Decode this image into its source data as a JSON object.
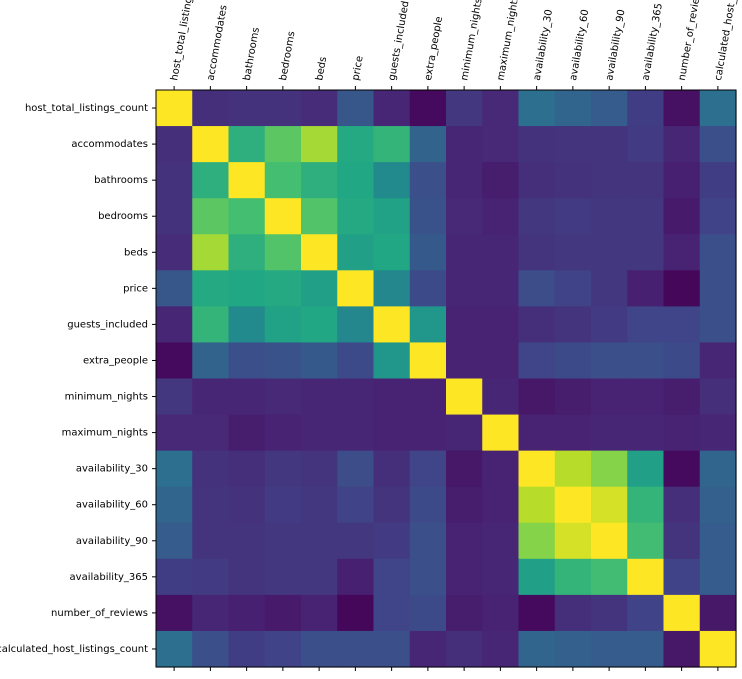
{
  "chart_data": {
    "type": "heatmap",
    "title": "",
    "xlabel": "",
    "ylabel": "",
    "colormap": "viridis",
    "value_range": [
      -0.1,
      1.0
    ],
    "labels": [
      "host_total_listings_count",
      "accommodates",
      "bathrooms",
      "bedrooms",
      "beds",
      "price",
      "guests_included",
      "extra_people",
      "minimum_nights",
      "maximum_nights",
      "availability_30",
      "availability_60",
      "availability_90",
      "availability_365",
      "number_of_reviews",
      "calculated_host_listings_count"
    ],
    "x_tick_labels": [
      "host_total_listing",
      "accommodates",
      "bathrooms",
      "bedrooms",
      "beds",
      "price",
      "guests_included",
      "extra_people",
      "minimum_nights",
      "maximum_nights",
      "availability_30",
      "availability_60",
      "availability_90",
      "availability_365",
      "number_of_reviev",
      "calculated_host_"
    ],
    "matrix": [
      [
        1.0,
        0.05,
        0.06,
        0.06,
        0.04,
        0.2,
        0.02,
        -0.07,
        0.08,
        0.03,
        0.3,
        0.26,
        0.22,
        0.1,
        -0.05,
        0.3
      ],
      [
        0.05,
        1.0,
        0.6,
        0.72,
        0.85,
        0.57,
        0.62,
        0.25,
        0.02,
        0.03,
        0.06,
        0.07,
        0.07,
        0.09,
        0.02,
        0.17
      ],
      [
        0.06,
        0.6,
        1.0,
        0.67,
        0.6,
        0.56,
        0.42,
        0.17,
        0.02,
        -0.01,
        0.05,
        0.06,
        0.07,
        0.07,
        0.0,
        0.1
      ],
      [
        0.06,
        0.72,
        0.67,
        1.0,
        0.7,
        0.57,
        0.53,
        0.18,
        0.03,
        0.01,
        0.08,
        0.09,
        0.08,
        0.08,
        -0.02,
        0.12
      ],
      [
        0.04,
        0.85,
        0.6,
        0.7,
        1.0,
        0.52,
        0.56,
        0.21,
        0.02,
        0.02,
        0.07,
        0.08,
        0.08,
        0.08,
        0.01,
        0.17
      ],
      [
        0.2,
        0.57,
        0.56,
        0.57,
        0.52,
        1.0,
        0.41,
        0.15,
        0.02,
        0.02,
        0.16,
        0.12,
        0.08,
        0.0,
        -0.08,
        0.17
      ],
      [
        0.02,
        0.62,
        0.42,
        0.53,
        0.56,
        0.41,
        1.0,
        0.48,
        0.01,
        0.01,
        0.05,
        0.07,
        0.09,
        0.13,
        0.13,
        0.17
      ],
      [
        -0.07,
        0.25,
        0.17,
        0.18,
        0.21,
        0.15,
        0.48,
        1.0,
        0.01,
        0.01,
        0.13,
        0.15,
        0.17,
        0.17,
        0.15,
        0.02
      ],
      [
        0.08,
        0.02,
        0.02,
        0.03,
        0.02,
        0.02,
        0.01,
        0.01,
        1.0,
        0.02,
        -0.03,
        -0.01,
        0.01,
        0.01,
        -0.01,
        0.05
      ],
      [
        0.03,
        0.03,
        -0.01,
        0.01,
        0.02,
        0.02,
        0.01,
        0.01,
        0.02,
        1.0,
        0.01,
        0.01,
        0.02,
        0.02,
        0.01,
        0.02
      ],
      [
        0.3,
        0.06,
        0.05,
        0.08,
        0.07,
        0.16,
        0.05,
        0.13,
        -0.03,
        0.01,
        1.0,
        0.88,
        0.8,
        0.52,
        -0.07,
        0.26
      ],
      [
        0.26,
        0.07,
        0.06,
        0.09,
        0.08,
        0.12,
        0.07,
        0.15,
        -0.01,
        0.01,
        0.88,
        1.0,
        0.93,
        0.62,
        0.05,
        0.24
      ],
      [
        0.22,
        0.07,
        0.07,
        0.08,
        0.08,
        0.08,
        0.09,
        0.17,
        0.01,
        0.02,
        0.8,
        0.93,
        1.0,
        0.66,
        0.07,
        0.22
      ],
      [
        0.1,
        0.09,
        0.07,
        0.08,
        0.08,
        0.0,
        0.13,
        0.17,
        0.01,
        0.02,
        0.52,
        0.62,
        0.66,
        1.0,
        0.12,
        0.22
      ],
      [
        -0.05,
        0.02,
        0.0,
        -0.02,
        0.01,
        -0.08,
        0.13,
        0.15,
        -0.01,
        0.01,
        -0.07,
        0.05,
        0.07,
        0.12,
        1.0,
        -0.03
      ],
      [
        0.3,
        0.17,
        0.1,
        0.12,
        0.17,
        0.17,
        0.17,
        0.02,
        0.05,
        0.02,
        0.26,
        0.24,
        0.22,
        0.22,
        -0.03,
        1.0
      ]
    ]
  }
}
